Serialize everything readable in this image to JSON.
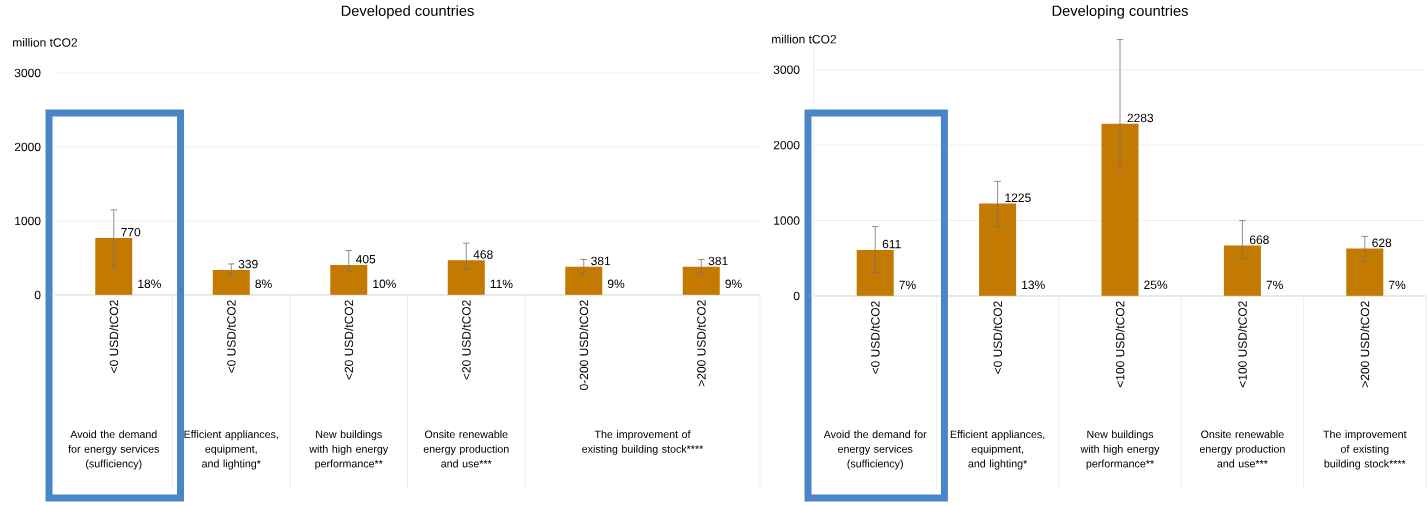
{
  "chart_data": [
    {
      "type": "bar",
      "title": "Developed countries",
      "ylabel": "million tCO2",
      "categories": [
        "<0 USD/tCO2",
        "<0 USD/tCO2",
        "<20 USD/tCO2",
        "<20 USD/tCO2",
        "0-200 USD/tCO2",
        ">200 USD/tCO2"
      ],
      "values": [
        770,
        339,
        405,
        468,
        381,
        381
      ],
      "errors": [
        [
          380,
          1150
        ],
        [
          270,
          420
        ],
        [
          310,
          600
        ],
        [
          350,
          700
        ],
        [
          290,
          480
        ],
        [
          290,
          480
        ]
      ],
      "color": "#c47a00",
      "ylim": [
        0,
        3000
      ],
      "yticks": [
        0,
        1000,
        2000,
        3000
      ],
      "grid": "y",
      "data_labels": true,
      "annotations": [
        "18%",
        "8%",
        "10%",
        "11%",
        "9%",
        "9%",
        "Avoid the demand for energy services (sufficiency)",
        "Efficient appliances, equipment, and lighting*",
        "New buildings with high energy performance**",
        "Onsite renewable energy production and use***",
        "The improvement of existing building stock****"
      ]
    },
    {
      "type": "bar",
      "title": "Developing countries",
      "ylabel": "million tCO2",
      "categories": [
        "<0 USD/tCO2",
        "<0 USD/tCO2",
        "<100 USD/tCO2",
        "<100 USD/tCO2",
        ">200 USD/tCO2"
      ],
      "values": [
        611,
        1225,
        2283,
        668,
        628
      ],
      "errors": [
        [
          310,
          920
        ],
        [
          920,
          1520
        ],
        [
          1700,
          3400
        ],
        [
          500,
          1000
        ],
        [
          460,
          790
        ]
      ],
      "color": "#c47a00",
      "ylim": [
        0,
        3500
      ],
      "yticks": [
        0,
        1000,
        2000,
        3000
      ],
      "grid": "y",
      "data_labels": true,
      "annotations": [
        "7%",
        "13%",
        "25%",
        "7%",
        "7%",
        "Avoid the demand for energy services (sufficiency)",
        "Efficient appliances, equipment, and lighting*",
        "New buildings with high energy performance**",
        "Onsite renewable energy production and use***",
        "The improvement of existing building stock****"
      ]
    }
  ]
}
